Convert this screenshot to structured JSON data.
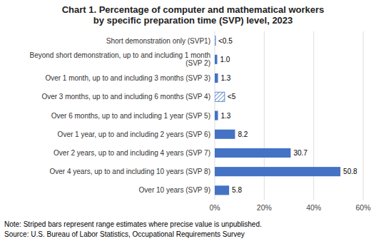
{
  "chart_data": {
    "type": "bar",
    "orientation": "horizontal",
    "title": "Chart 1. Percentage of computer and mathematical workers\nby specific preparation time (SVP) level, 2023",
    "categories": [
      "Short demonstration only (SVP1)",
      "Beyond short demonstration, up to and including 1 month\n(SVP 2)",
      "Over 1 month, up to and including 3 months (SVP 3)",
      "Over 3 months, up to and including 6 months (SVP 4)",
      "Over 6 months, up to and including 1 year (SVP 5)",
      "Over 1 year, up to and including 2 years (SVP 6)",
      "Over 2 years, up to and including 4 years (SVP 7)",
      "Over 4 years, up to and including 10 years (SVP 8)",
      "Over 10 years (SVP 9)"
    ],
    "values": [
      0.3,
      1.0,
      1.3,
      4.0,
      1.3,
      8.2,
      30.7,
      50.8,
      5.8
    ],
    "value_labels": [
      "<0.5",
      "1.0",
      "1.3",
      "<5",
      "1.3",
      "8.2",
      "30.7",
      "50.8",
      "5.8"
    ],
    "data_labels": true,
    "striped": [
      true,
      false,
      false,
      true,
      false,
      false,
      false,
      false,
      false
    ],
    "color": "#4472C4",
    "xlim": [
      0,
      60
    ],
    "xticks": [
      {
        "value": 0,
        "label": "0%"
      },
      {
        "value": 20,
        "label": "20%"
      },
      {
        "value": 40,
        "label": "40%"
      },
      {
        "value": 60,
        "label": "60%"
      }
    ],
    "grid": true,
    "annotations": [
      "Note: Striped bars represent range estimates where precise value is unpublished.",
      "Source: U.S. Bureau of Labor Statistics, Occupational Requirements Survey"
    ]
  }
}
